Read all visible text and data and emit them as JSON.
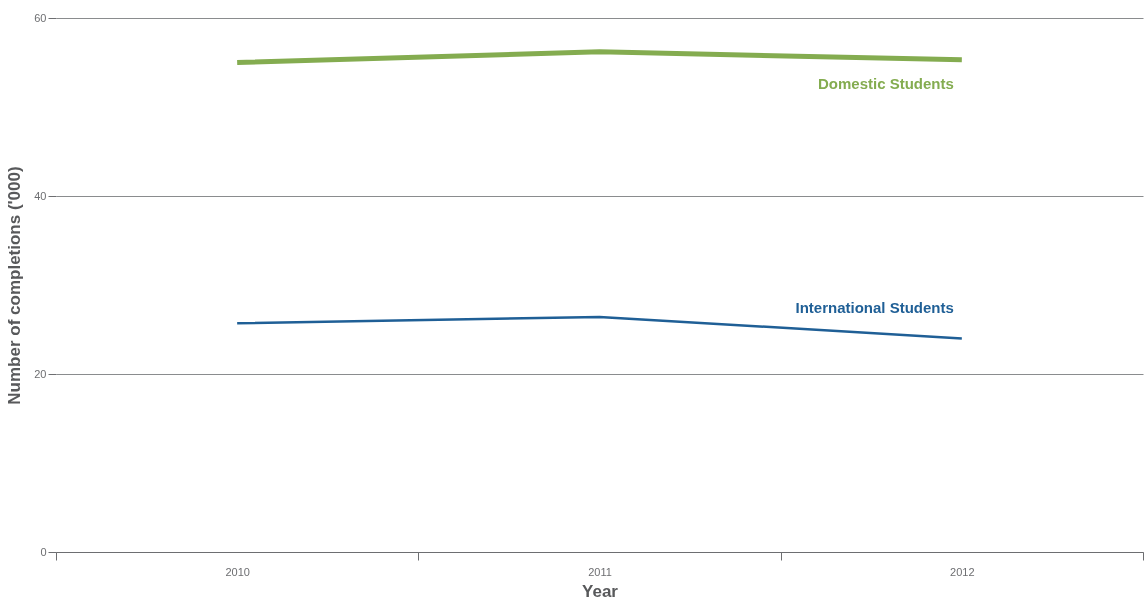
{
  "chart_data": {
    "type": "line",
    "xlabel": "Year",
    "ylabel": "Number of completions ('000)",
    "categories": [
      "2010",
      "2011",
      "2012"
    ],
    "series": [
      {
        "name": "Domestic Students",
        "color": "#84ac50",
        "values": [
          55.0,
          56.2,
          55.3
        ]
      },
      {
        "name": "International Students",
        "color": "#1f5f96",
        "values": [
          25.7,
          26.4,
          24.0
        ]
      }
    ],
    "ylim": [
      0,
      60
    ],
    "yticks": [
      0,
      20,
      40,
      60
    ],
    "grid": "y",
    "marker": "none",
    "line_style": "solid"
  }
}
